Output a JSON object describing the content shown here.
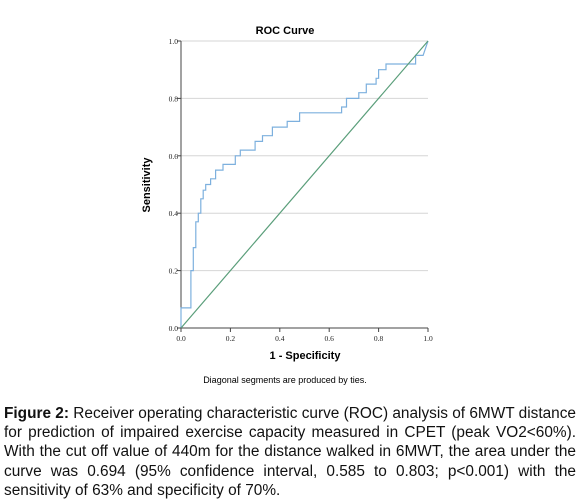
{
  "chart_data": {
    "type": "line",
    "title": "ROC Curve",
    "xlabel": "1 - Specificity",
    "ylabel": "Sensitivity",
    "xlim": [
      0.0,
      1.0
    ],
    "ylim": [
      0.0,
      1.0
    ],
    "x_ticks": [
      "0.0",
      "0.2",
      "0.4",
      "0.6",
      "0.8",
      "1.0"
    ],
    "y_ticks": [
      "0.0",
      "0.2",
      "0.4",
      "0.6",
      "0.8",
      "1.0"
    ],
    "grid": "horizontal",
    "footnote": "Diagonal segments are produced by ties.",
    "series": [
      {
        "color": "#7db0de",
        "x": [
          0.0,
          0.0,
          0.04,
          0.04,
          0.05,
          0.05,
          0.06,
          0.06,
          0.07,
          0.07,
          0.08,
          0.08,
          0.09,
          0.09,
          0.1,
          0.1,
          0.12,
          0.12,
          0.14,
          0.14,
          0.17,
          0.17,
          0.22,
          0.22,
          0.24,
          0.24,
          0.3,
          0.3,
          0.33,
          0.33,
          0.37,
          0.37,
          0.43,
          0.43,
          0.48,
          0.48,
          0.65,
          0.65,
          0.67,
          0.67,
          0.72,
          0.72,
          0.75,
          0.75,
          0.79,
          0.79,
          0.8,
          0.8,
          0.83,
          0.83,
          0.95,
          0.95,
          0.98,
          1.0
        ],
        "y": [
          0.0,
          0.07,
          0.07,
          0.2,
          0.2,
          0.28,
          0.28,
          0.37,
          0.37,
          0.4,
          0.4,
          0.45,
          0.45,
          0.48,
          0.48,
          0.5,
          0.5,
          0.52,
          0.52,
          0.55,
          0.55,
          0.57,
          0.57,
          0.6,
          0.6,
          0.62,
          0.62,
          0.65,
          0.65,
          0.67,
          0.67,
          0.7,
          0.7,
          0.72,
          0.72,
          0.75,
          0.75,
          0.77,
          0.77,
          0.8,
          0.8,
          0.82,
          0.82,
          0.85,
          0.85,
          0.87,
          0.87,
          0.9,
          0.9,
          0.92,
          0.92,
          0.95,
          0.95,
          1.0
        ]
      },
      {
        "color": "#5a9e7a",
        "x": [
          0.0,
          1.0
        ],
        "y": [
          0.0,
          1.0
        ]
      }
    ]
  },
  "caption": {
    "label": "Figure 2:",
    "text": " Receiver operating characteristic curve (ROC) analysis of 6MWT distance for prediction of impaired exercise capacity measured in CPET (peak VO2<60%). With the cut off value of 440m for the distance walked in 6MWT, the area under the curve was 0.694 (95% confidence interval, 0.585 to 0.803; p<0.001) with the sensitivity of 63% and specificity of 70%."
  }
}
